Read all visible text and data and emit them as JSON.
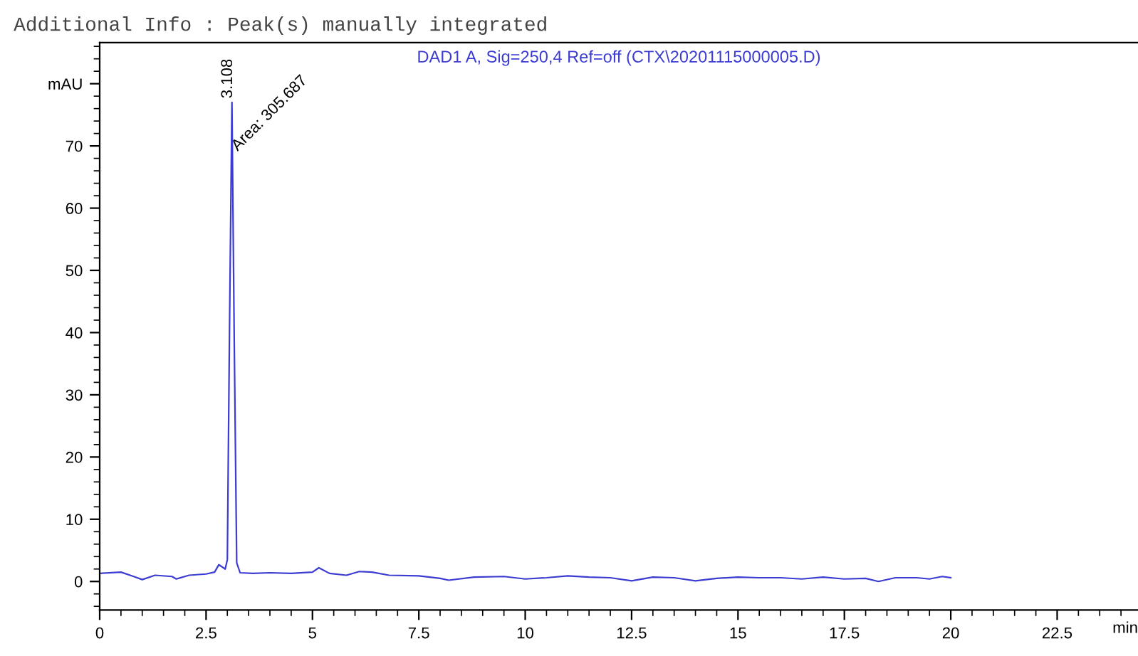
{
  "chart_data": {
    "type": "line",
    "title": "DAD1 A, Sig=250,4 Ref=off (CTX\\20201115000005.D)",
    "subtitle": "Additional Info : Peak(s) manually integrated",
    "xlabel": "min",
    "series": [
      {
        "color": "#3c3cd2",
        "x": [
          0,
          0.5,
          0.8,
          1.0,
          1.3,
          1.7,
          1.8,
          2.1,
          2.5,
          2.7,
          2.8,
          2.95,
          3.0,
          3.05,
          3.108,
          3.16,
          3.22,
          3.3,
          3.6,
          4.0,
          4.5,
          5.0,
          5.15,
          5.4,
          5.8,
          6.1,
          6.4,
          6.8,
          7.5,
          8.0,
          8.2,
          8.8,
          9.5,
          10.0,
          10.5,
          11.0,
          11.5,
          12.0,
          12.5,
          13.0,
          13.5,
          14.0,
          14.5,
          15.0,
          15.5,
          16.0,
          16.5,
          17.0,
          17.5,
          18.0,
          18.3,
          18.7,
          19.2,
          19.5,
          19.8,
          20.0
        ],
        "values": [
          1.3,
          1.5,
          0.8,
          0.3,
          1.0,
          0.8,
          0.4,
          1.0,
          1.2,
          1.5,
          2.7,
          2.0,
          3.5,
          40,
          77,
          40,
          3,
          1.4,
          1.3,
          1.4,
          1.3,
          1.5,
          2.2,
          1.3,
          1.0,
          1.6,
          1.5,
          1.0,
          0.9,
          0.5,
          0.2,
          0.7,
          0.8,
          0.4,
          0.6,
          0.9,
          0.7,
          0.6,
          0.1,
          0.7,
          0.6,
          0.1,
          0.5,
          0.7,
          0.6,
          0.6,
          0.4,
          0.7,
          0.4,
          0.5,
          0.0,
          0.6,
          0.6,
          0.4,
          0.8,
          0.6
        ]
      }
    ],
    "annotations": [
      {
        "text": "3.108",
        "x": 3.108,
        "y": 77
      },
      {
        "text": "Area: 305.687",
        "x": 3.108,
        "y": 70
      }
    ],
    "xlim": [
      0,
      24.4
    ],
    "ylim": [
      -4.6,
      86.6
    ],
    "xticks": [
      0,
      2.5,
      5,
      7.5,
      10,
      12.5,
      15,
      17.5,
      20,
      22.5
    ],
    "yticks": [
      0,
      10,
      20,
      30,
      40,
      50,
      60,
      70,
      {
        "value": 80,
        "label": "mAU"
      }
    ],
    "grid": false,
    "legend": false,
    "marker": "none",
    "line_style": "solid"
  }
}
